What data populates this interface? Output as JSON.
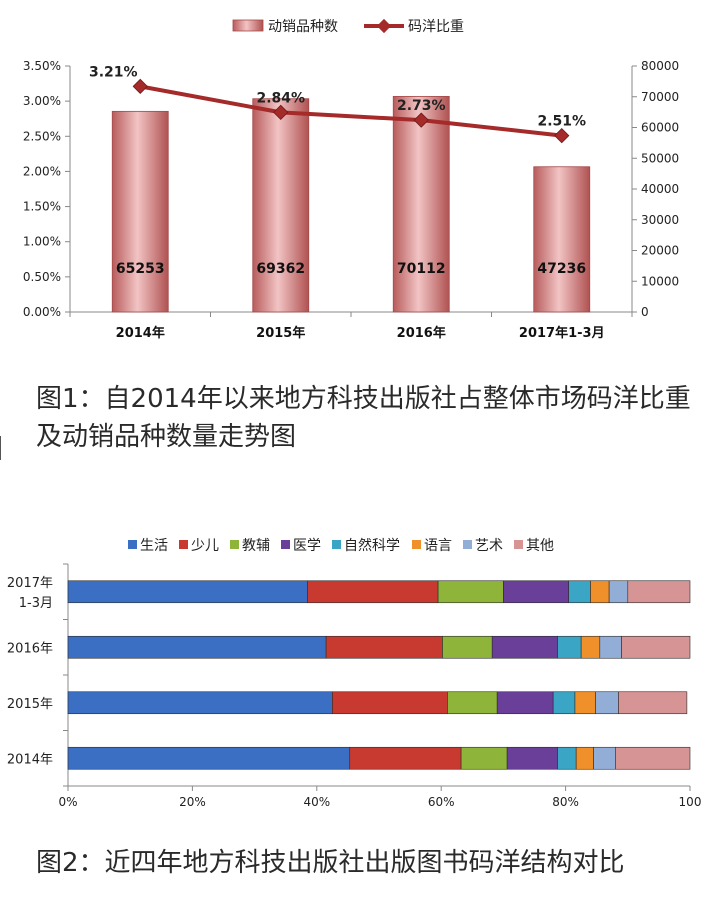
{
  "chart_data": [
    {
      "type": "bar",
      "categories": [
        "2014年",
        "2015年",
        "2016年",
        "2017年1-3月"
      ],
      "series": [
        {
          "name": "动销品种数",
          "chart_type": "bar",
          "axis": "right",
          "values": [
            65253,
            69362,
            70112,
            47236
          ],
          "labels": [
            "65253",
            "69362",
            "70112",
            "47236"
          ],
          "color": "#c47070"
        },
        {
          "name": "码洋比重",
          "chart_type": "line",
          "axis": "left",
          "values": [
            3.21,
            2.84,
            2.73,
            2.51
          ],
          "labels": [
            "3.21%",
            "2.84%",
            "2.73%",
            "2.51%"
          ],
          "color": "#a52a2a"
        }
      ],
      "y_left": {
        "ylim": [
          0,
          3.5
        ],
        "ticks": [
          "0.00%",
          "0.50%",
          "1.00%",
          "1.50%",
          "2.00%",
          "2.50%",
          "3.00%",
          "3.50%"
        ]
      },
      "y_right": {
        "ylim": [
          0,
          80000
        ],
        "ticks": [
          "0",
          "10000",
          "20000",
          "30000",
          "40000",
          "50000",
          "60000",
          "70000",
          "80000"
        ]
      },
      "legend_position": "top-center",
      "grid": false
    },
    {
      "type": "bar",
      "orientation": "horizontal",
      "stacked": "percent",
      "categories": [
        [
          "2017年",
          "1-3月"
        ],
        [
          "2016年"
        ],
        [
          "2015年"
        ],
        [
          "2014年"
        ]
      ],
      "series": [
        {
          "name": "生活",
          "color": "#3a6fc4",
          "values": [
            38.5,
            41.5,
            42.5,
            45.3
          ]
        },
        {
          "name": "少儿",
          "color": "#c83a30",
          "values": [
            21.0,
            18.7,
            18.5,
            17.9
          ]
        },
        {
          "name": "教辅",
          "color": "#8fb43a",
          "values": [
            10.5,
            8.0,
            8.0,
            7.4
          ]
        },
        {
          "name": "医学",
          "color": "#6a3f9a",
          "values": [
            10.5,
            10.5,
            9.0,
            8.1
          ]
        },
        {
          "name": "自然科学",
          "color": "#3aa5c4",
          "values": [
            3.5,
            3.8,
            3.5,
            3.0
          ]
        },
        {
          "name": "语言",
          "color": "#f0902a",
          "values": [
            3.0,
            3.0,
            3.3,
            2.8
          ]
        },
        {
          "name": "艺术",
          "color": "#93aed6",
          "values": [
            3.0,
            3.5,
            3.7,
            3.5
          ]
        },
        {
          "name": "其他",
          "color": "#d69494",
          "values": [
            10.0,
            11.0,
            11.0,
            12.0
          ]
        }
      ],
      "x_ticks": [
        "0%",
        "20%",
        "40%",
        "60%",
        "80%",
        "100"
      ],
      "xlim": [
        0,
        100
      ],
      "legend_position": "top-center",
      "grid": false
    }
  ],
  "captions": {
    "figure1": "图1：自2014年以来地方科技出版社占整体市场码洋比重及动销品种数量走势图",
    "figure2": "图2：近四年地方科技出版社出版图书码洋结构对比"
  }
}
